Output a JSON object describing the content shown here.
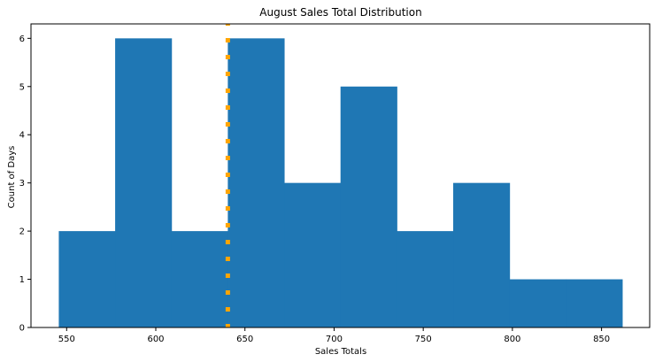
{
  "chart_data": {
    "type": "bar",
    "title": "August Sales Total Distribution",
    "xlabel": "Sales Totals",
    "ylabel": "Count of Days",
    "bin_edges": [
      545.6,
      577.2,
      608.8,
      640.4,
      672.0,
      703.6,
      735.2,
      766.8,
      798.4,
      830.0,
      861.6
    ],
    "values": [
      2,
      6,
      2,
      6,
      3,
      5,
      2,
      3,
      1,
      1
    ],
    "xlim": [
      530,
      877
    ],
    "ylim": [
      0,
      6.3
    ],
    "x_ticks": [
      550,
      600,
      650,
      700,
      750,
      800,
      850
    ],
    "y_ticks": [
      0,
      1,
      2,
      3,
      4,
      5,
      6
    ],
    "reference_line": {
      "x": 640.4,
      "style": "dotted"
    },
    "grid": false,
    "colors": {
      "bar": "#1f77b4",
      "reference_line": "#ffa500",
      "axis": "#000000"
    }
  }
}
